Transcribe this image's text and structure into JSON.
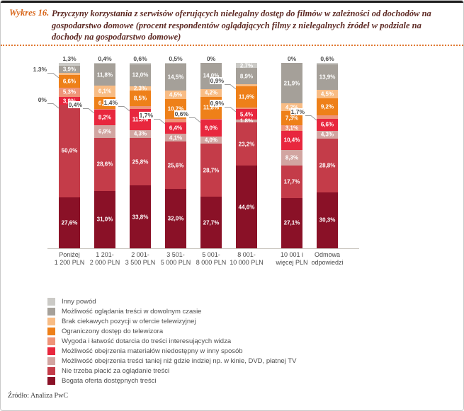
{
  "page": {
    "figure_label": "Wykres 16.",
    "title": "Przyczyny korzystania z serwisów oferujących nielegalny dostęp do filmów w zależności od dochodów na gospodarstwo domowe (procent respondentów oglądających filmy z nielegalnych źródeł w podziale na dochody na gospodarstwo domowe)",
    "source": "Źródło: Analiza PwC",
    "accent_orange": "#d8661a",
    "title_color": "#5e2a24"
  },
  "chart_data": {
    "type": "bar",
    "stacked": true,
    "unit": "%",
    "ylim": [
      0,
      100
    ],
    "grid": false,
    "legend_position": "bottom-left",
    "gap_before_category_index": 6,
    "categories": [
      [
        "Poniżej",
        "1 200 PLN"
      ],
      [
        "1 201-",
        "2 000 PLN"
      ],
      [
        "2 001-",
        "3 500 PLN"
      ],
      [
        "3 501-",
        "5 000 PLN"
      ],
      [
        "5 001-",
        "8 000 PLN"
      ],
      [
        "8 001-",
        "10 000 PLN"
      ],
      [
        "10 001 i",
        "więcej PLN"
      ],
      [
        "Odmowa",
        "odpowiedzi"
      ]
    ],
    "series": [
      {
        "name": "Inny powód",
        "color": "#cbcac6",
        "values": [
          1.3,
          0.4,
          0.6,
          0.5,
          0,
          2.7,
          0,
          0.6
        ],
        "value_labels": [
          "1,3%",
          "0,4%",
          "0,6%",
          "0,5%",
          "0%",
          "2,7%",
          "0%",
          "0,6%"
        ],
        "label_placement": [
          "above",
          "above",
          "above",
          "above",
          "above",
          "inside",
          "above",
          "above"
        ]
      },
      {
        "name": "Możliwość oglądania treści w dowolnym czasie",
        "color": "#a5a099",
        "values": [
          3.9,
          11.8,
          12.0,
          14.5,
          14.0,
          8.9,
          21.9,
          13.9
        ],
        "value_labels": [
          "3,9%",
          "11,8%",
          "12,0%",
          "14,5%",
          "14,0%",
          "8,9%",
          "21,9%",
          "13,9%"
        ],
        "label_placement": [
          "inside",
          "inside",
          "inside",
          "inside",
          "inside",
          "inside",
          "inside",
          "inside"
        ]
      },
      {
        "name": "Brak ciekawych pozycji w ofercie telewizyjnej",
        "color": "#f8bc84",
        "values": [
          1.3,
          6.1,
          2.3,
          4.5,
          4.2,
          0.9,
          4.2,
          4.5
        ],
        "value_labels": [
          "1.3%",
          "6,1%",
          "2,3%",
          "4,5%",
          "4,2%",
          "0,9%",
          "4,2%",
          "4,5%"
        ],
        "label_placement": [
          "callout-left",
          "inside",
          "inside",
          "inside",
          "inside",
          "callout-left",
          "inside",
          "inside"
        ]
      },
      {
        "name": "Ograniczony dostęp do telewizora",
        "color": "#ee8019",
        "values": [
          6.6,
          6.5,
          8.5,
          10.7,
          11.8,
          11.6,
          7.3,
          9.2
        ],
        "value_labels": [
          "6,6%",
          "6,5%",
          "8,5%",
          "10,7%",
          "11,8%",
          "11,6%",
          "7,3%",
          "9,2%"
        ],
        "label_placement": [
          "inside",
          "inside",
          "inside",
          "inside",
          "inside",
          "inside",
          "inside",
          "inside"
        ]
      },
      {
        "name": "Wygoda i łatwość dotarcia do treści interesujących widza",
        "color": "#ef9478",
        "values": [
          5.3,
          0.4,
          1.4,
          1.7,
          0.6,
          0.9,
          3.1,
          1.7
        ],
        "value_labels": [
          "5,3%",
          "0,4%",
          "1,4%",
          "1,7%",
          "0,6%",
          "0,9%",
          "3,1%",
          "1,7%"
        ],
        "label_placement": [
          "inside",
          "callout-left",
          "callout-left",
          "callout-left",
          "callout-left",
          "callout-left",
          "inside",
          "callout-left"
        ]
      },
      {
        "name": "Możliwość obejrzenia materiałów niedostępny w inny sposób",
        "color": "#e8273e",
        "values": [
          3.9,
          8.2,
          11.3,
          6.4,
          9.0,
          5.4,
          10.4,
          6.6
        ],
        "value_labels": [
          "3,9%",
          "8,2%",
          "11.3%",
          "6,4%",
          "9,0%",
          "5,4%",
          "10,4%",
          "6,6%"
        ],
        "label_placement": [
          "inside",
          "inside",
          "inside",
          "inside",
          "inside",
          "inside",
          "inside",
          "inside"
        ]
      },
      {
        "name": "Możliwość obejrzenia treści taniej niż gdzie indziej np. w kinie, DVD, płatnej TV",
        "color": "#d2a5a1",
        "values": [
          0,
          6.9,
          4.3,
          4.1,
          4.0,
          1.8,
          8.3,
          4.3
        ],
        "value_labels": [
          "0%",
          "6,9%",
          "4,3%",
          "4,1%",
          "4,0%",
          "1,8%",
          "8,3%",
          "4,3%"
        ],
        "label_placement": [
          "callout-left",
          "inside",
          "inside",
          "inside",
          "inside",
          "inside",
          "inside",
          "inside"
        ]
      },
      {
        "name": "Nie trzeba płacić za oglądanie treści",
        "color": "#c43c49",
        "values": [
          50.0,
          28.6,
          25.8,
          25.6,
          28.7,
          23.2,
          17.7,
          28.8
        ],
        "value_labels": [
          "50,0%",
          "28,6%",
          "25,8%",
          "25,6%",
          "28,7%",
          "23,2%",
          "17,7%",
          "28,8%"
        ],
        "label_placement": [
          "inside",
          "inside",
          "inside",
          "inside",
          "inside",
          "inside",
          "inside",
          "inside"
        ]
      },
      {
        "name": "Bogata oferta dostępnych treści",
        "color": "#8a1127",
        "values": [
          27.6,
          31.0,
          33.8,
          32.0,
          27.7,
          44.6,
          27.1,
          30.3
        ],
        "value_labels": [
          "27,6%",
          "31,0%",
          "33,8%",
          "32,0%",
          "27,7%",
          "44,6%",
          "27,1%",
          "30,3%"
        ],
        "label_placement": [
          "inside",
          "inside",
          "inside",
          "inside",
          "inside",
          "inside",
          "inside",
          "inside"
        ]
      }
    ]
  }
}
